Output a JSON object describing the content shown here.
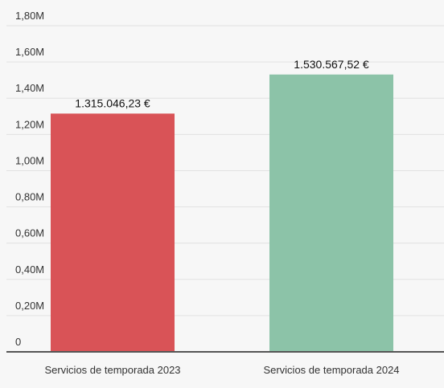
{
  "chart_data": {
    "type": "bar",
    "categories": [
      "Servicios de temporada 2023",
      "Servicios de temporada 2024"
    ],
    "values": [
      1315046.23,
      1530567.52
    ],
    "data_labels": [
      "1.315.046,23 €",
      "1.530.567,52 €"
    ],
    "colors": [
      "#d95357",
      "#8cc3a8"
    ],
    "title": "",
    "xlabel": "",
    "ylabel": "",
    "ylim": [
      0,
      1800000
    ],
    "yticks": [
      0,
      200000,
      400000,
      600000,
      800000,
      1000000,
      1200000,
      1400000,
      1600000,
      1800000
    ],
    "ytick_labels": [
      "0",
      "0,20M",
      "0,40M",
      "0,60M",
      "0,80M",
      "1,00M",
      "1,20M",
      "1,40M",
      "1,60M",
      "1,80M"
    ],
    "grid": true,
    "legend": "none"
  }
}
